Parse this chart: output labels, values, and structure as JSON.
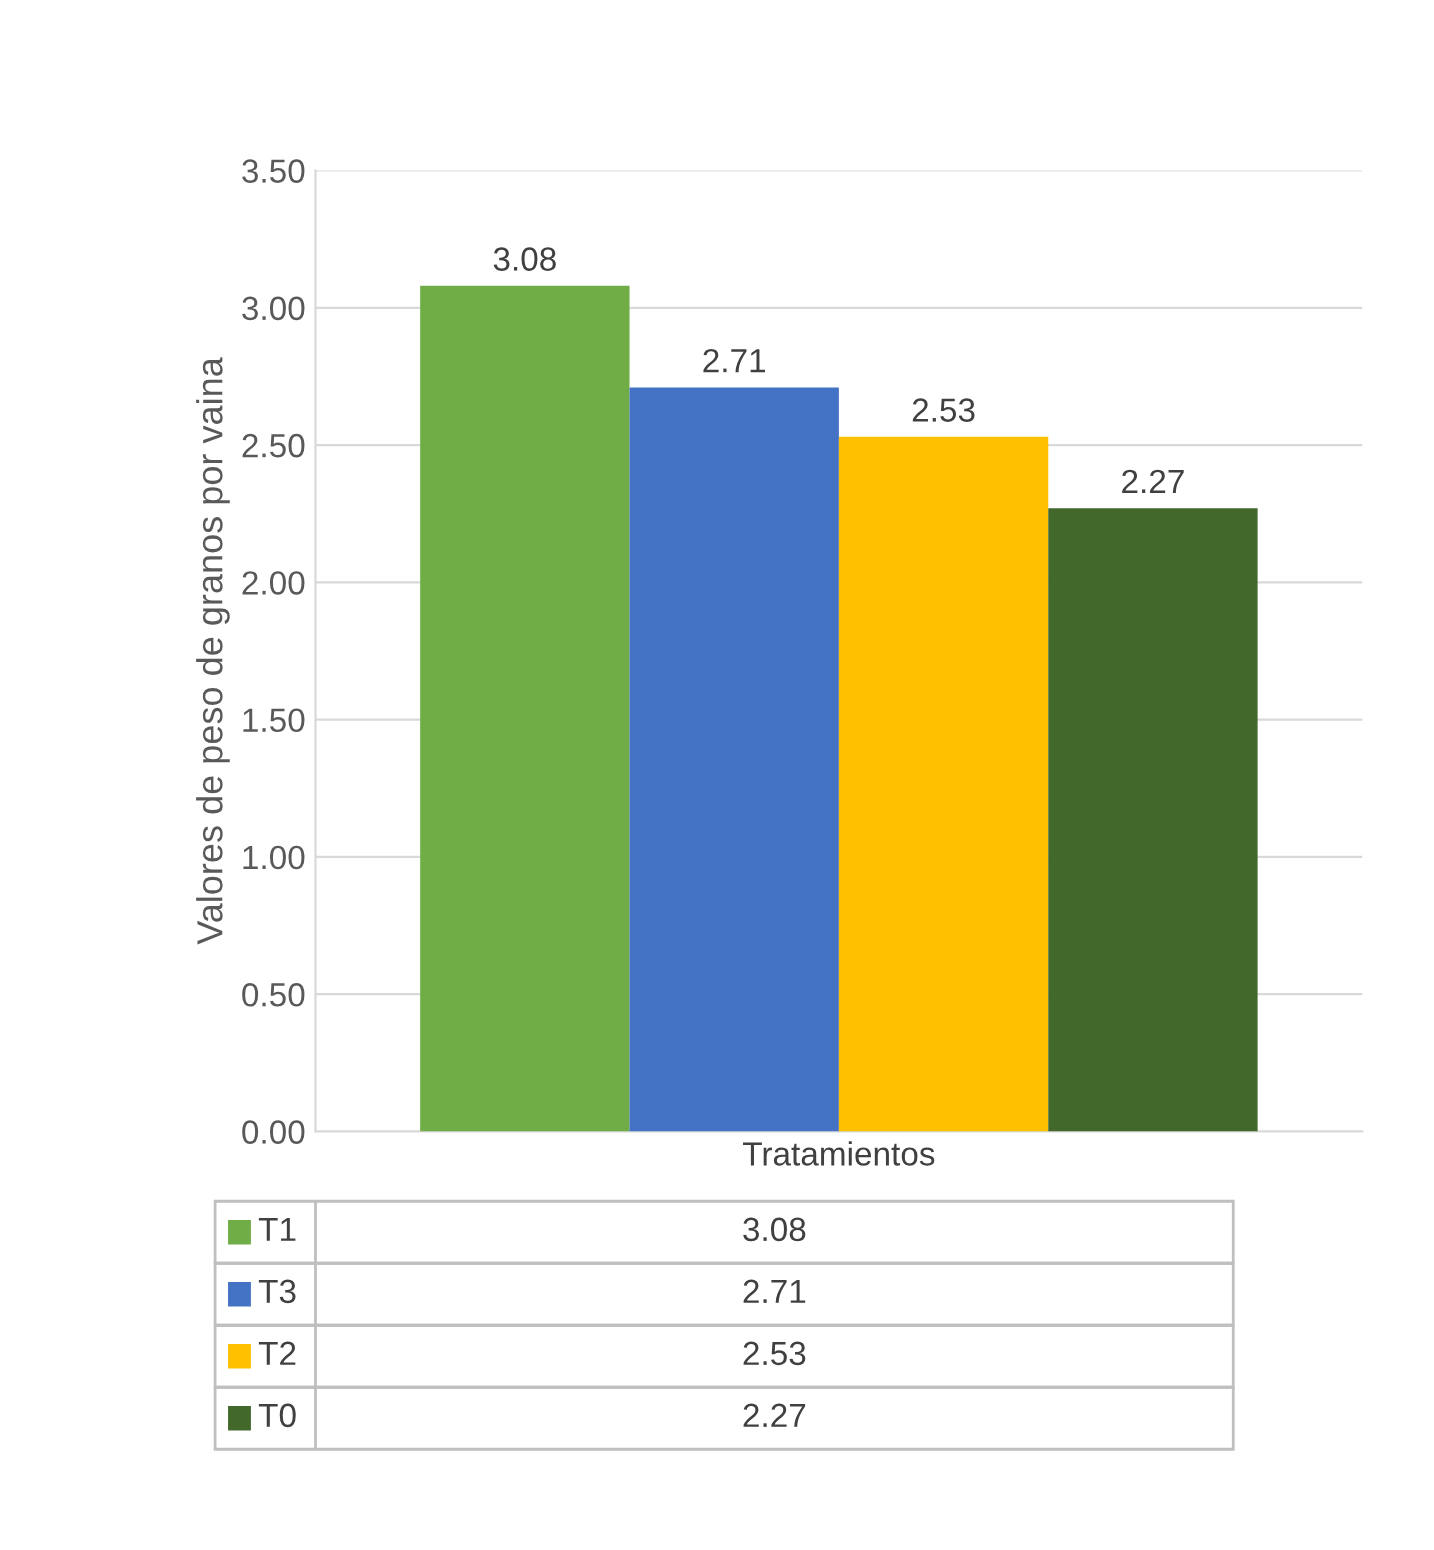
{
  "chart_data": {
    "type": "bar",
    "categories": [
      "Tratamientos"
    ],
    "ylabel": "Valores de peso de granos por vaina",
    "series": [
      {
        "name": "T1",
        "color": "#70ad47",
        "values": [
          3.08
        ],
        "value_labels": [
          "3.08"
        ]
      },
      {
        "name": "T3",
        "color": "#4472c4",
        "values": [
          2.71
        ],
        "value_labels": [
          "2.71"
        ]
      },
      {
        "name": "T2",
        "color": "#ffc000",
        "values": [
          2.53
        ],
        "value_labels": [
          "2.53"
        ]
      },
      {
        "name": "T0",
        "color": "#43682b",
        "values": [
          2.27
        ],
        "value_labels": [
          "2.27"
        ]
      }
    ],
    "ylim": [
      0,
      3.5
    ],
    "yticks": [
      {
        "value": 0,
        "label": "0.00"
      },
      {
        "value": 0.5,
        "label": "0.50"
      },
      {
        "value": 1,
        "label": "1.00"
      },
      {
        "value": 1.5,
        "label": "1.50"
      },
      {
        "value": 2,
        "label": "2.00"
      },
      {
        "value": 2.5,
        "label": "2.50"
      },
      {
        "value": 3,
        "label": "3.00"
      },
      {
        "value": 3.5,
        "label": "3.50"
      }
    ],
    "grid": "y",
    "data_labels": true,
    "legend": "bottom"
  }
}
